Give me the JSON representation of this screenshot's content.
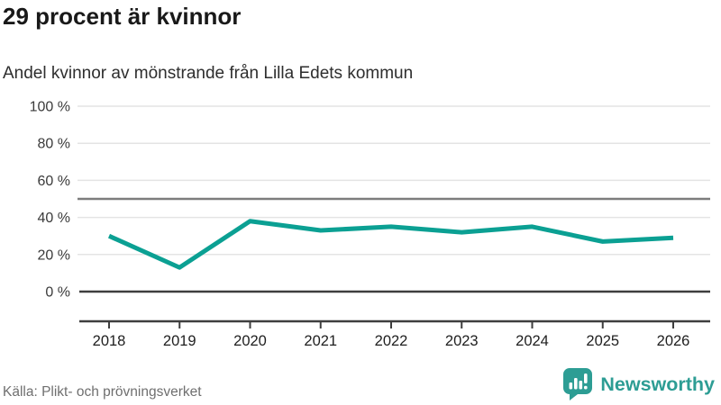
{
  "chart_data": {
    "type": "line",
    "title": "29 procent är kvinnor",
    "subtitle": "Andel kvinnor av mönstrande från Lilla Edets kommun",
    "categories": [
      "2018",
      "2019",
      "2020",
      "2021",
      "2022",
      "2023",
      "2024",
      "2025",
      "2026"
    ],
    "values": [
      30,
      13,
      38,
      33,
      35,
      32,
      35,
      27,
      29
    ],
    "unit": "%",
    "xlabel": "",
    "ylabel": "",
    "ylim": [
      0,
      100
    ],
    "yticks": [
      0,
      20,
      40,
      60,
      80,
      100
    ],
    "ytick_suffix": " %",
    "reference_line": 50,
    "grid": true,
    "legend": "none",
    "colors": {
      "line": "#0ba093",
      "grid": "#e4e4e4",
      "reference": "#7d7d7d",
      "axis": "#3e3e3e",
      "y_label": "#3a3a3a",
      "x_label": "#202020"
    }
  },
  "footer": {
    "source": "Källa: Plikt- och prövningsverket",
    "brand": "Newsworthy",
    "brand_color": "#2d9d94"
  }
}
